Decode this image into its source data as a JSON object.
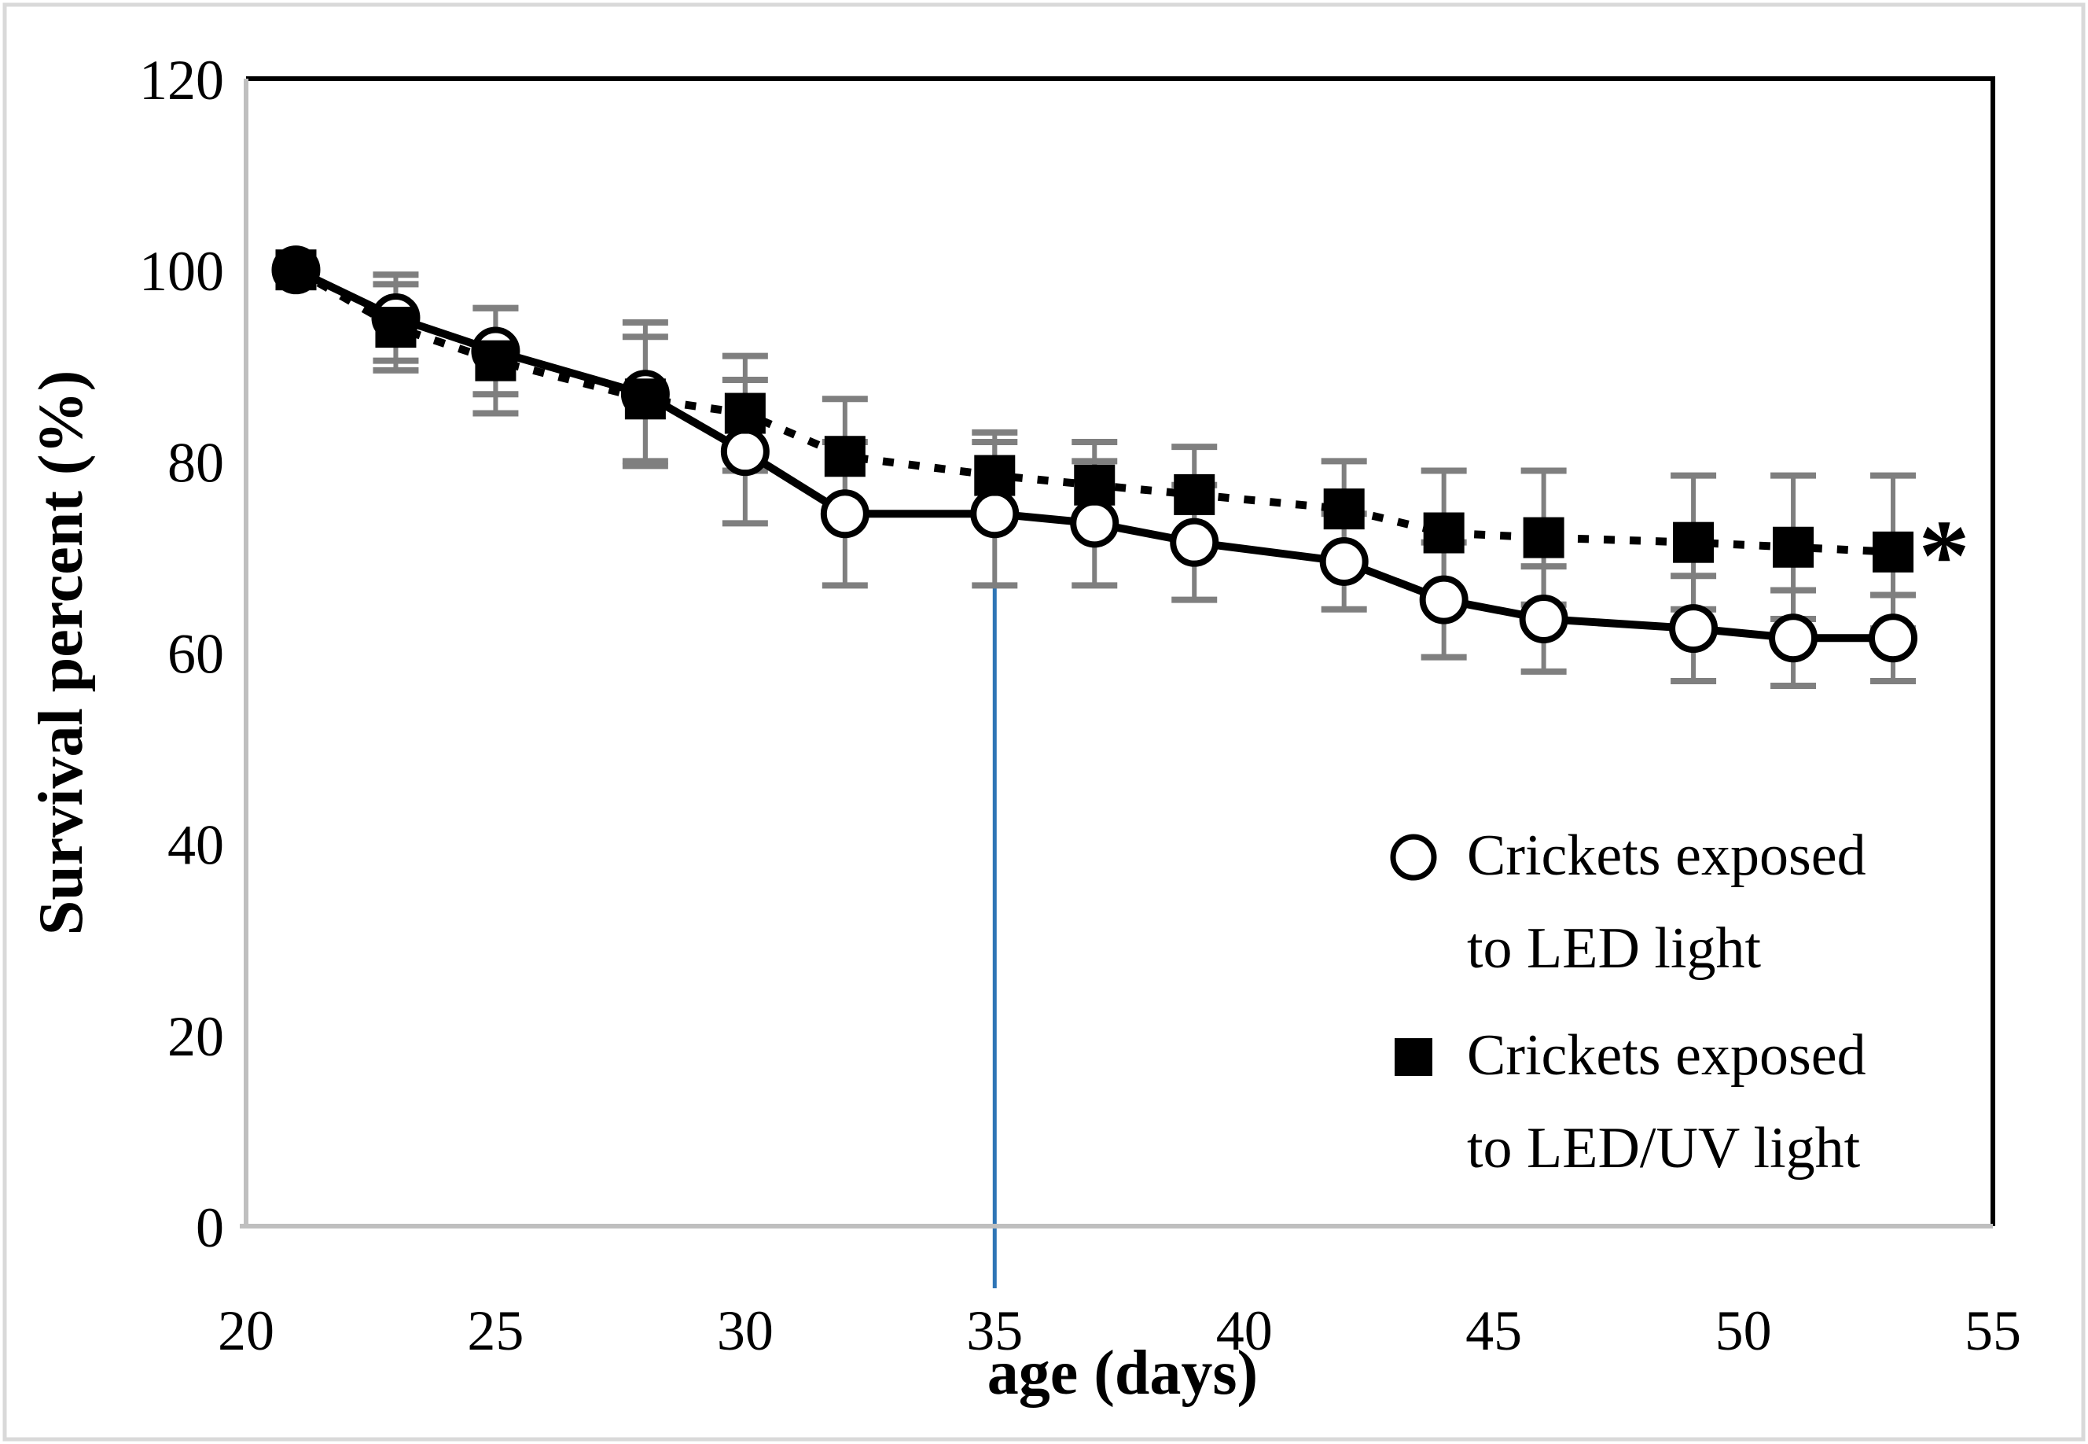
{
  "figure": {
    "background": "#ffffff",
    "border_color": "#d9d9d9"
  },
  "chart_data": {
    "type": "line",
    "title": "",
    "xlabel": "age (days)",
    "ylabel": "Survival percent (%)",
    "xlim": [
      20,
      55
    ],
    "ylim": [
      0,
      120
    ],
    "x_ticks": [
      20,
      25,
      30,
      35,
      40,
      45,
      50,
      55
    ],
    "y_ticks": [
      0,
      20,
      40,
      60,
      80,
      100,
      120
    ],
    "grid": false,
    "x": [
      21,
      23,
      25,
      28,
      30,
      32,
      35,
      37,
      39,
      42,
      44,
      46,
      49,
      51,
      53
    ],
    "series": [
      {
        "name": "Crickets exposed to LED light",
        "marker": "circle-open",
        "line_style": "solid",
        "color": "#000000",
        "values": [
          100,
          95,
          91.5,
          87,
          81,
          74.5,
          74.5,
          73.5,
          71.5,
          69.5,
          65.5,
          63.5,
          62.5,
          61.5,
          61.5
        ],
        "errors": [
          0,
          4.5,
          4.5,
          7.5,
          7.5,
          7.5,
          7.5,
          6.5,
          6,
          5,
          6,
          5.5,
          5.5,
          5,
          4.5
        ]
      },
      {
        "name": "Crickets exposed to LED/UV light",
        "marker": "square-filled",
        "line_style": "dotted",
        "color": "#000000",
        "values": [
          100,
          94,
          90.5,
          86.5,
          85,
          80.5,
          78.5,
          77.5,
          76.5,
          75,
          72.5,
          72,
          71.5,
          71,
          70.5
        ],
        "errors": [
          0,
          4.5,
          5.5,
          6.5,
          6,
          6,
          4.5,
          4.5,
          5,
          5,
          6.5,
          7,
          7,
          7.5,
          8
        ]
      }
    ],
    "error_bar_color": "#7f7f7f",
    "axis_line_color": "#bfbfbf",
    "plot_border_color": "#000000",
    "annotations": {
      "vertical_line": {
        "x": 35,
        "y_top": 67,
        "y_bottom": -6.5,
        "color": "#2E75B6"
      },
      "asterisk": {
        "label": "*",
        "x": 54,
        "y": 70.5
      }
    },
    "legend": {
      "position": "inside-right-bottom",
      "entries": [
        {
          "marker": "circle-open",
          "lines": [
            "Crickets exposed",
            "to LED light"
          ]
        },
        {
          "marker": "square-filled",
          "lines": [
            "Crickets exposed",
            "to LED/UV light"
          ]
        }
      ]
    }
  }
}
